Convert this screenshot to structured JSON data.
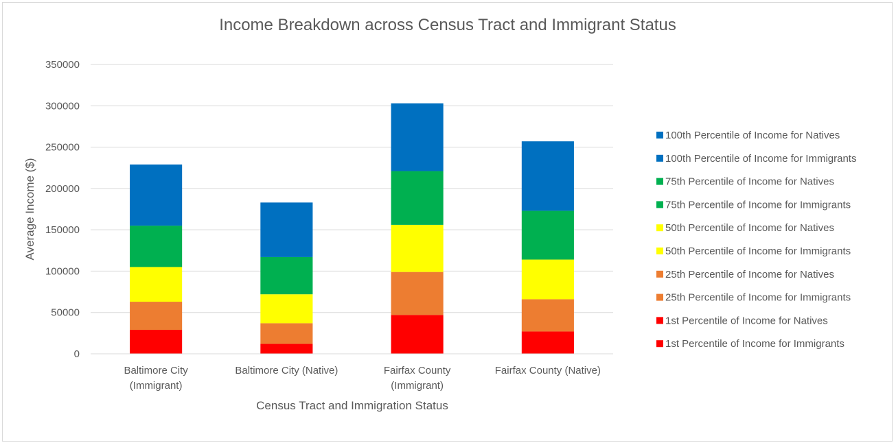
{
  "chart_data": {
    "type": "bar",
    "stacked": true,
    "title": "Income Breakdown across Census Tract and Immigrant Status",
    "xlabel": "Census Tract and Immigration Status",
    "ylabel": "Average Income ($)",
    "ylim": [
      0,
      350000
    ],
    "yticks": [
      "0",
      "50000",
      "100000",
      "150000",
      "200000",
      "250000",
      "300000",
      "350000"
    ],
    "grid": true,
    "legend_position": "right",
    "categories": [
      [
        "Baltimore City",
        "(Immigrant)"
      ],
      [
        "Baltimore City (Native)"
      ],
      [
        "Fairfax County",
        "(Immigrant)"
      ],
      [
        "Fairfax County (Native)"
      ]
    ],
    "series": [
      {
        "name": "1st Percentile of Income for Immigrants",
        "color": "#ff0000",
        "values": [
          29000,
          0,
          47000,
          0
        ]
      },
      {
        "name": "1st Percentile of Income for Natives",
        "color": "#ff0000",
        "values": [
          0,
          12000,
          0,
          27000
        ]
      },
      {
        "name": "25th Percentile of Income for Immigrants",
        "color": "#ed7d31",
        "values": [
          34000,
          0,
          52000,
          0
        ]
      },
      {
        "name": "25th Percentile of Income for Natives",
        "color": "#ed7d31",
        "values": [
          0,
          25000,
          0,
          39000
        ]
      },
      {
        "name": "50th Percentile of Income for Immigrants",
        "color": "#ffff00",
        "values": [
          42000,
          0,
          57000,
          0
        ]
      },
      {
        "name": "50th Percentile of Income for Natives",
        "color": "#ffff00",
        "values": [
          0,
          35000,
          0,
          48000
        ]
      },
      {
        "name": "75th Percentile of Income for Immigrants",
        "color": "#00b050",
        "values": [
          50000,
          0,
          65000,
          0
        ]
      },
      {
        "name": "75th Percentile of Income for Natives",
        "color": "#00b050",
        "values": [
          0,
          45000,
          0,
          59000
        ]
      },
      {
        "name": "100th Percentile of Income for Immigrants",
        "color": "#0070c0",
        "values": [
          74000,
          0,
          82000,
          0
        ]
      },
      {
        "name": "100th Percentile of Income for Natives",
        "color": "#0070c0",
        "values": [
          0,
          66000,
          0,
          84000
        ]
      }
    ]
  }
}
